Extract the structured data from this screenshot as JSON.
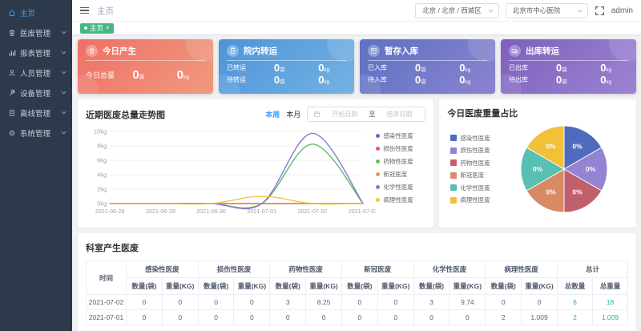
{
  "sidebar": {
    "items": [
      {
        "key": "home",
        "label": "主页",
        "icon": "home-icon",
        "active": true,
        "expandable": false
      },
      {
        "key": "waste",
        "label": "医废管理",
        "icon": "trash-icon",
        "active": false,
        "expandable": true
      },
      {
        "key": "report",
        "label": "报表管理",
        "icon": "bar-chart-icon",
        "active": false,
        "expandable": true
      },
      {
        "key": "personnel",
        "label": "人员管理",
        "icon": "person-icon",
        "active": false,
        "expandable": true
      },
      {
        "key": "device",
        "label": "设备管理",
        "icon": "tool-icon",
        "active": false,
        "expandable": true
      },
      {
        "key": "offline",
        "label": "离线管理",
        "icon": "document-icon",
        "active": false,
        "expandable": true
      },
      {
        "key": "system",
        "label": "系统管理",
        "icon": "gear-icon",
        "active": false,
        "expandable": true
      }
    ]
  },
  "header": {
    "breadcrumb": "主页",
    "region_select": "北京 / 北京 / 西城区",
    "hospital_select": "北京市中心医院",
    "username": "admin"
  },
  "tags": {
    "active_tab": "主页",
    "close_glyph": "×"
  },
  "cards": [
    {
      "key": "today-produce",
      "title": "今日产生",
      "icon": "trash-icon",
      "gradient": [
        "#ef7066",
        "#f09a7d"
      ],
      "rows": [
        {
          "label": "今日总量",
          "bag_value": "0",
          "bag_unit": "袋",
          "kg_value": "0",
          "kg_unit": "kg"
        }
      ]
    },
    {
      "key": "hospital-transfer",
      "title": "院内转运",
      "icon": "clipboard-icon",
      "gradient": [
        "#4d94d9",
        "#74b2e3"
      ],
      "rows": [
        {
          "label": "已转运",
          "bag_value": "0",
          "bag_unit": "袋",
          "kg_value": "0",
          "kg_unit": "kg"
        },
        {
          "label": "待转运",
          "bag_value": "0",
          "bag_unit": "袋",
          "kg_value": "0",
          "kg_unit": "kg"
        }
      ]
    },
    {
      "key": "storage-in",
      "title": "暂存入库",
      "icon": "archive-icon",
      "gradient": [
        "#5c72c3",
        "#8c83d0"
      ],
      "rows": [
        {
          "label": "已入库",
          "bag_value": "0",
          "bag_unit": "袋",
          "kg_value": "0",
          "kg_unit": "kg"
        },
        {
          "label": "待入库",
          "bag_value": "0",
          "bag_unit": "袋",
          "kg_value": "0",
          "kg_unit": "kg"
        }
      ]
    },
    {
      "key": "outbound-transfer",
      "title": "出库转运",
      "icon": "truck-icon",
      "gradient": [
        "#7e60bd",
        "#9c83d2"
      ],
      "rows": [
        {
          "label": "已出库",
          "bag_value": "0",
          "bag_unit": "袋",
          "kg_value": "0",
          "kg_unit": "kg"
        },
        {
          "label": "待出库",
          "bag_value": "0",
          "bag_unit": "袋",
          "kg_value": "0",
          "kg_unit": "kg"
        }
      ]
    }
  ],
  "trend_panel": {
    "title": "近期医废总量走势图",
    "week_btn": "本周",
    "month_btn": "本月",
    "date_start_placeholder": "开始日期",
    "date_separator": "至",
    "date_end_placeholder": "结束日期"
  },
  "pie_panel": {
    "title": "今日医废重量占比"
  },
  "chart_data": [
    {
      "type": "line",
      "title": "近期医废总量走势图",
      "x": [
        "2021-06-28",
        "2021-06-29",
        "2021-06-30",
        "2021-07-01",
        "2021-07-02",
        "2021-07-03"
      ],
      "xlabel": "",
      "ylabel": "kg",
      "ylim": [
        0,
        10
      ],
      "yticks": [
        0,
        2,
        4,
        6,
        8,
        10
      ],
      "ytick_suffix": "kg",
      "grid": true,
      "legend_position": "right",
      "series": [
        {
          "name": "感染性医废",
          "color": "#5470c6",
          "values": [
            0,
            0,
            0,
            0,
            0,
            0
          ]
        },
        {
          "name": "损伤性医废",
          "color": "#e05c5c",
          "values": [
            0,
            0,
            0,
            0,
            0,
            0
          ]
        },
        {
          "name": "药物性医废",
          "color": "#5fbb63",
          "values": [
            0,
            0,
            0,
            0,
            8.25,
            0
          ]
        },
        {
          "name": "新冠医废",
          "color": "#ef9552",
          "values": [
            0,
            0,
            0,
            0,
            0,
            0
          ]
        },
        {
          "name": "化学性医废",
          "color": "#8877d4",
          "values": [
            0,
            0,
            0,
            0,
            9.74,
            0
          ]
        },
        {
          "name": "病理性医废",
          "color": "#f3c53b",
          "values": [
            0,
            0,
            0,
            1.009,
            0,
            0
          ]
        }
      ]
    },
    {
      "type": "pie",
      "title": "今日医废重量占比",
      "labels": [
        "感染性医废",
        "损伤性医废",
        "药物性医废",
        "新冠医废",
        "化学性医废",
        "病理性医废"
      ],
      "values": [
        1,
        1,
        1,
        1,
        1,
        1
      ],
      "slice_labels": [
        "0%",
        "0%",
        "0%",
        "0%",
        "0%",
        "0%"
      ],
      "colors": [
        "#4f6bbd",
        "#9383d2",
        "#c25f6d",
        "#d88a64",
        "#58c0b2",
        "#f2c138"
      ],
      "legend_position": "left"
    }
  ],
  "table_panel": {
    "title": "科室产生医废",
    "time_header": "时间",
    "group_headers": [
      "感染性医废",
      "损伤性医废",
      "药物性医废",
      "新冠医废",
      "化学性医废",
      "病理性医废",
      "总计"
    ],
    "qty_header": "数量(袋)",
    "weight_header": "重量(KG)",
    "total_qty_header": "总数量",
    "total_weight_header": "总重量",
    "rows": [
      {
        "time": "2021-07-02",
        "cells": [
          "0",
          "0",
          "0",
          "0",
          "3",
          "8.25",
          "0",
          "0",
          "3",
          "9.74",
          "0",
          "0"
        ],
        "total_qty": "6",
        "total_weight": "18"
      },
      {
        "time": "2021-07-01",
        "cells": [
          "0",
          "0",
          "0",
          "0",
          "0",
          "0",
          "0",
          "0",
          "0",
          "0",
          "2",
          "1.009"
        ],
        "total_qty": "2",
        "total_weight": "1.009"
      }
    ]
  }
}
